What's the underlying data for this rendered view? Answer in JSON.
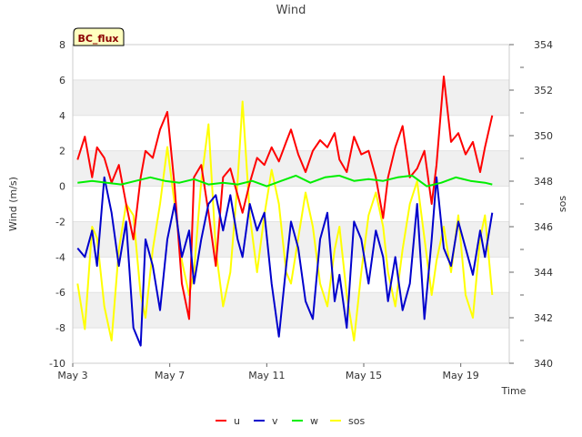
{
  "chart_data": {
    "type": "line",
    "title": "Wind",
    "site_badge": "BC_flux",
    "xlabel": "Time",
    "ylabel": "Wind (m/s)",
    "y2label": "sos",
    "x_domain_days": [
      0,
      18
    ],
    "x_ticks": [
      {
        "day": 0,
        "label": "May 3"
      },
      {
        "day": 4,
        "label": "May 7"
      },
      {
        "day": 8,
        "label": "May 11"
      },
      {
        "day": 12,
        "label": "May 15"
      },
      {
        "day": 16,
        "label": "May 19"
      }
    ],
    "ylim": [
      -10,
      8
    ],
    "y_ticks": [
      -10,
      -8,
      -6,
      -4,
      -2,
      0,
      2,
      4,
      6,
      8
    ],
    "y2lim": [
      340,
      354
    ],
    "y2_ticks": [
      340,
      342,
      344,
      346,
      348,
      350,
      352,
      354
    ],
    "grid_bands": [
      [
        -8,
        -6
      ],
      [
        -4,
        -2
      ],
      [
        0,
        2
      ],
      [
        4,
        6
      ]
    ],
    "colors": {
      "u": "#ff0000",
      "v": "#0000cc",
      "w": "#00ee00",
      "sos": "#ffff00",
      "band": "#f0f0f0",
      "badge_fill": "#ffffc0"
    },
    "series": [
      {
        "name": "u",
        "axis": "left",
        "color": "#ff0000",
        "x": [
          0.2,
          0.5,
          0.8,
          1.0,
          1.3,
          1.6,
          1.9,
          2.2,
          2.5,
          2.8,
          3.0,
          3.3,
          3.6,
          3.9,
          4.2,
          4.5,
          4.8,
          5.0,
          5.3,
          5.6,
          5.9,
          6.2,
          6.5,
          6.8,
          7.0,
          7.3,
          7.6,
          7.9,
          8.2,
          8.5,
          8.8,
          9.0,
          9.3,
          9.6,
          9.9,
          10.2,
          10.5,
          10.8,
          11.0,
          11.3,
          11.6,
          11.9,
          12.2,
          12.5,
          12.8,
          13.0,
          13.3,
          13.6,
          13.9,
          14.2,
          14.5,
          14.8,
          15.0,
          15.3,
          15.6,
          15.9,
          16.2,
          16.5,
          16.8,
          17.0,
          17.3
        ],
        "values": [
          1.5,
          2.8,
          0.5,
          2.2,
          1.6,
          0.2,
          1.2,
          -1.0,
          -3.0,
          0.5,
          2.0,
          1.6,
          3.2,
          4.2,
          0.0,
          -5.5,
          -7.5,
          0.5,
          1.2,
          -1.5,
          -4.5,
          0.5,
          1.0,
          -0.5,
          -1.5,
          0.2,
          1.6,
          1.2,
          2.2,
          1.4,
          2.5,
          3.2,
          1.8,
          0.8,
          2.0,
          2.6,
          2.2,
          3.0,
          1.5,
          0.8,
          2.8,
          1.8,
          2.0,
          0.5,
          -1.8,
          0.5,
          2.2,
          3.4,
          0.5,
          1.0,
          2.0,
          -1.0,
          1.2,
          6.2,
          2.5,
          3.0,
          1.8,
          2.5,
          0.8,
          2.2,
          4.0
        ]
      },
      {
        "name": "v",
        "axis": "left",
        "color": "#0000cc",
        "x": [
          0.2,
          0.5,
          0.8,
          1.0,
          1.3,
          1.6,
          1.9,
          2.2,
          2.5,
          2.8,
          3.0,
          3.3,
          3.6,
          3.9,
          4.2,
          4.5,
          4.8,
          5.0,
          5.3,
          5.6,
          5.9,
          6.2,
          6.5,
          6.8,
          7.0,
          7.3,
          7.6,
          7.9,
          8.2,
          8.5,
          8.8,
          9.0,
          9.3,
          9.6,
          9.9,
          10.2,
          10.5,
          10.8,
          11.0,
          11.3,
          11.6,
          11.9,
          12.2,
          12.5,
          12.8,
          13.0,
          13.3,
          13.6,
          13.9,
          14.2,
          14.5,
          14.8,
          15.0,
          15.3,
          15.6,
          15.9,
          16.2,
          16.5,
          16.8,
          17.0,
          17.3
        ],
        "values": [
          -3.5,
          -4.0,
          -2.5,
          -4.5,
          0.5,
          -1.5,
          -4.5,
          -2.0,
          -8.0,
          -9.0,
          -3.0,
          -4.5,
          -7.0,
          -3.0,
          -1.0,
          -4.0,
          -2.5,
          -5.5,
          -3.0,
          -1.0,
          -0.5,
          -2.5,
          -0.5,
          -3.0,
          -4.0,
          -1.0,
          -2.5,
          -1.5,
          -5.5,
          -8.5,
          -4.5,
          -2.0,
          -3.5,
          -6.5,
          -7.5,
          -3.0,
          -1.5,
          -6.5,
          -5.0,
          -8.0,
          -2.0,
          -3.0,
          -5.5,
          -2.5,
          -4.0,
          -6.5,
          -4.0,
          -7.0,
          -5.5,
          -1.0,
          -7.5,
          -3.0,
          0.5,
          -3.5,
          -4.5,
          -2.0,
          -3.5,
          -5.0,
          -2.5,
          -4.0,
          -1.5
        ]
      },
      {
        "name": "w",
        "axis": "left",
        "color": "#00ee00",
        "x": [
          0.2,
          0.8,
          1.4,
          2.0,
          2.6,
          3.2,
          3.8,
          4.4,
          5.0,
          5.6,
          6.2,
          6.8,
          7.4,
          8.0,
          8.6,
          9.2,
          9.8,
          10.4,
          11.0,
          11.6,
          12.2,
          12.8,
          13.4,
          14.0,
          14.6,
          15.2,
          15.8,
          16.4,
          17.0,
          17.3
        ],
        "values": [
          0.2,
          0.3,
          0.2,
          0.1,
          0.3,
          0.5,
          0.3,
          0.2,
          0.4,
          0.1,
          0.2,
          0.1,
          0.3,
          0.0,
          0.3,
          0.6,
          0.2,
          0.5,
          0.6,
          0.3,
          0.4,
          0.3,
          0.5,
          0.6,
          0.0,
          0.2,
          0.5,
          0.3,
          0.2,
          0.1
        ]
      },
      {
        "name": "sos",
        "axis": "right",
        "color": "#ffff00",
        "x": [
          0.2,
          0.5,
          0.8,
          1.0,
          1.3,
          1.6,
          1.9,
          2.2,
          2.5,
          2.8,
          3.0,
          3.3,
          3.6,
          3.9,
          4.2,
          4.5,
          4.8,
          5.0,
          5.3,
          5.6,
          5.9,
          6.2,
          6.5,
          6.8,
          7.0,
          7.3,
          7.6,
          7.9,
          8.2,
          8.5,
          8.8,
          9.0,
          9.3,
          9.6,
          9.9,
          10.2,
          10.5,
          10.8,
          11.0,
          11.3,
          11.6,
          11.9,
          12.2,
          12.5,
          12.8,
          13.0,
          13.3,
          13.6,
          13.9,
          14.2,
          14.5,
          14.8,
          15.0,
          15.3,
          15.6,
          15.9,
          16.2,
          16.5,
          16.8,
          17.0,
          17.3
        ],
        "values": [
          343.5,
          341.5,
          346.0,
          345.5,
          342.5,
          341.0,
          345.0,
          347.0,
          346.5,
          343.0,
          342.0,
          345.0,
          347.0,
          349.5,
          347.0,
          344.5,
          343.0,
          344.0,
          348.0,
          350.5,
          345.0,
          342.5,
          344.0,
          348.0,
          351.5,
          346.5,
          344.0,
          346.5,
          348.5,
          347.0,
          344.0,
          343.5,
          345.5,
          347.5,
          346.0,
          343.5,
          342.5,
          345.0,
          346.0,
          343.0,
          341.0,
          344.0,
          346.5,
          347.5,
          346.0,
          344.0,
          342.5,
          345.0,
          347.0,
          348.0,
          345.5,
          343.0,
          344.5,
          346.0,
          344.0,
          346.5,
          343.0,
          342.0,
          345.5,
          346.5,
          343.0
        ]
      }
    ],
    "legend": [
      "u",
      "v",
      "w",
      "sos"
    ],
    "legend_position": "bottom-center"
  }
}
